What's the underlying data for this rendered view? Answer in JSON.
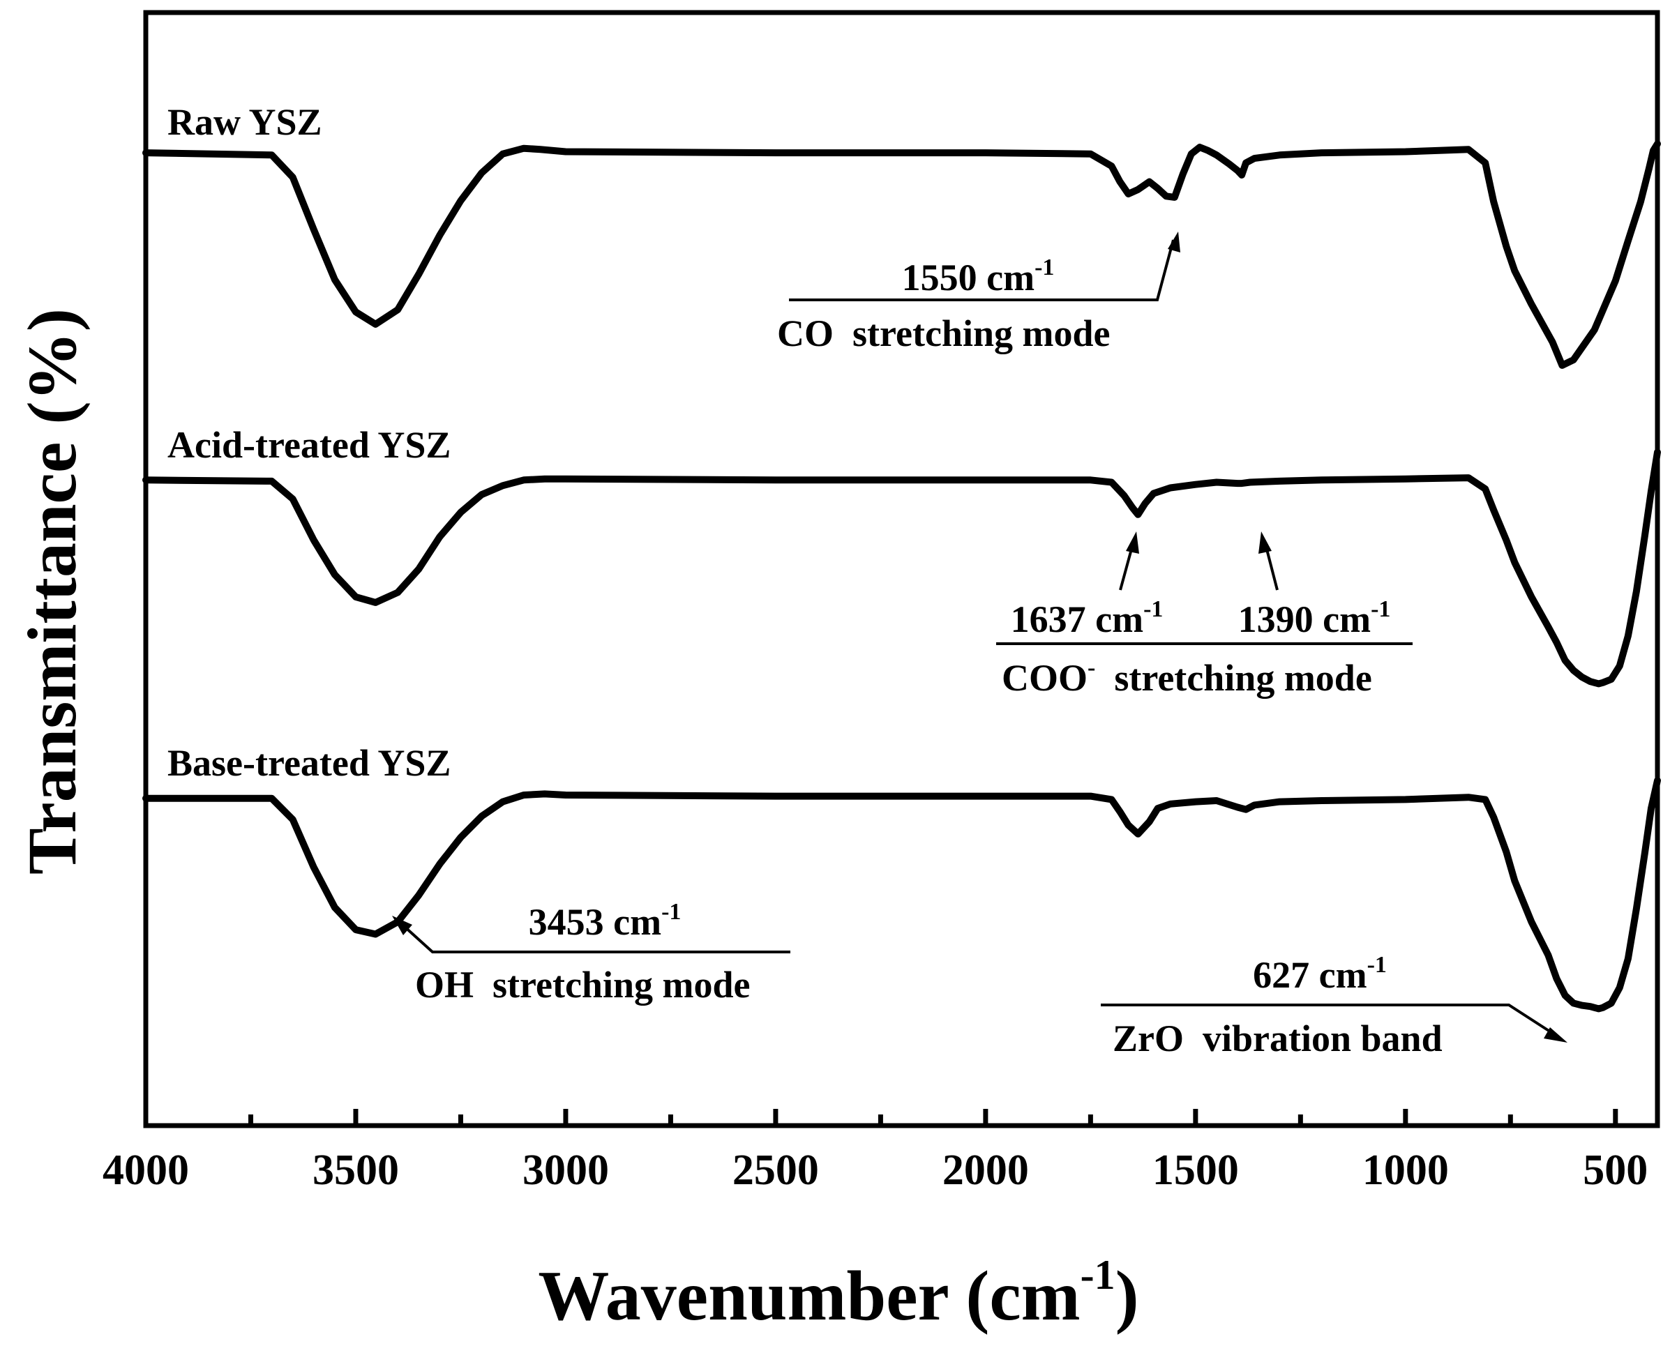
{
  "chart_data": {
    "type": "line",
    "title": "",
    "xlabel": "Wavenumber (cm",
    "xlabel_sup": "-1",
    "xlabel_close": ")",
    "ylabel": "Transmittance (%)",
    "xlim": [
      4000,
      400
    ],
    "x_reversed": true,
    "y_ticks_shown": false,
    "grid": false,
    "x_ticks": [
      4000,
      3500,
      3000,
      2500,
      2000,
      1500,
      1000,
      500
    ],
    "x_tick_labels": [
      "4000",
      "3500",
      "3000",
      "2500",
      "2000",
      "1500",
      "1000",
      "500"
    ],
    "x_minor_ticks": [
      3750,
      3250,
      2750,
      2250,
      1750,
      1250,
      750
    ],
    "ylim": [
      0,
      100
    ],
    "series": [
      {
        "name": "Raw YSZ",
        "label": "Raw YSZ",
        "x": [
          4000,
          3700,
          3650,
          3600,
          3550,
          3500,
          3453,
          3400,
          3350,
          3300,
          3250,
          3200,
          3150,
          3100,
          3060,
          3000,
          2500,
          2000,
          1750,
          1700,
          1680,
          1660,
          1637,
          1610,
          1590,
          1570,
          1550,
          1530,
          1510,
          1490,
          1470,
          1450,
          1420,
          1400,
          1390,
          1380,
          1360,
          1300,
          1200,
          1000,
          850,
          810,
          790,
          760,
          740,
          700,
          650,
          627,
          600,
          550,
          500,
          470,
          440,
          420,
          410,
          400
        ],
        "values": [
          87.4,
          87.2,
          85.2,
          80.5,
          76.0,
          73.1,
          72.0,
          73.3,
          76.5,
          80.0,
          83.1,
          85.6,
          87.3,
          87.8,
          87.7,
          87.5,
          87.4,
          87.4,
          87.3,
          86.2,
          84.8,
          83.7,
          84.1,
          84.8,
          84.2,
          83.5,
          83.4,
          85.5,
          87.3,
          87.9,
          87.6,
          87.2,
          86.4,
          85.8,
          85.4,
          86.5,
          86.9,
          87.2,
          87.4,
          87.5,
          87.7,
          86.5,
          83.0,
          79.0,
          76.8,
          73.8,
          70.4,
          68.3,
          68.8,
          71.5,
          75.9,
          79.5,
          83.0,
          86.0,
          87.6,
          88.2
        ]
      },
      {
        "name": "Acid-treated YSZ",
        "label": "Acid-treated YSZ",
        "x": [
          4000,
          3700,
          3650,
          3600,
          3550,
          3500,
          3453,
          3400,
          3350,
          3300,
          3250,
          3200,
          3150,
          3100,
          3050,
          3000,
          2500,
          2000,
          1750,
          1700,
          1670,
          1650,
          1637,
          1620,
          1600,
          1560,
          1500,
          1450,
          1400,
          1390,
          1370,
          1300,
          1200,
          1000,
          850,
          810,
          790,
          760,
          740,
          700,
          660,
          640,
          620,
          600,
          580,
          560,
          540,
          530,
          510,
          490,
          470,
          450,
          430,
          415,
          400
        ],
        "values": [
          58.0,
          57.9,
          56.3,
          52.6,
          49.5,
          47.5,
          47.0,
          47.9,
          50.0,
          52.9,
          55.1,
          56.7,
          57.5,
          58.0,
          58.1,
          58.1,
          58.0,
          58.0,
          58.0,
          57.8,
          56.6,
          55.5,
          54.9,
          55.9,
          56.8,
          57.3,
          57.6,
          57.8,
          57.7,
          57.7,
          57.8,
          57.9,
          58.0,
          58.1,
          58.2,
          57.2,
          55.3,
          52.6,
          50.6,
          47.5,
          44.8,
          43.4,
          41.8,
          40.9,
          40.3,
          39.9,
          39.7,
          39.8,
          40.1,
          41.3,
          44.0,
          48.0,
          53.0,
          57.0,
          60.5
        ]
      },
      {
        "name": "Base-treated YSZ",
        "label": "Base-treated YSZ",
        "x": [
          4000,
          3700,
          3650,
          3600,
          3550,
          3500,
          3453,
          3400,
          3350,
          3300,
          3250,
          3200,
          3150,
          3100,
          3050,
          3000,
          2500,
          2000,
          1750,
          1700,
          1680,
          1660,
          1637,
          1610,
          1590,
          1560,
          1500,
          1450,
          1400,
          1380,
          1360,
          1300,
          1200,
          1000,
          850,
          810,
          790,
          760,
          740,
          700,
          660,
          640,
          620,
          600,
          580,
          560,
          540,
          530,
          510,
          490,
          470,
          450,
          430,
          415,
          400
        ],
        "values": [
          29.4,
          29.4,
          27.5,
          23.2,
          19.6,
          17.6,
          17.2,
          18.3,
          20.7,
          23.5,
          25.9,
          27.8,
          29.1,
          29.7,
          29.8,
          29.7,
          29.6,
          29.6,
          29.6,
          29.3,
          28.2,
          27.0,
          26.2,
          27.3,
          28.5,
          28.9,
          29.1,
          29.2,
          28.6,
          28.4,
          28.8,
          29.1,
          29.2,
          29.3,
          29.5,
          29.3,
          27.7,
          24.6,
          22.0,
          18.3,
          15.3,
          13.2,
          11.7,
          11.0,
          10.8,
          10.7,
          10.5,
          10.6,
          11.0,
          12.4,
          15.0,
          19.5,
          24.5,
          28.5,
          31.0
        ]
      }
    ],
    "annotations": [
      {
        "name": "co-annotation",
        "wavenumber_label": "1550 cm",
        "sup": "-1",
        "mode_label": "CO  stretching mode",
        "points_to": 1550
      },
      {
        "name": "coo-annotation-1637",
        "wavenumber_label": "1637 cm",
        "sup": "-1",
        "points_to": 1637
      },
      {
        "name": "coo-annotation-1390",
        "wavenumber_label": "1390 cm",
        "sup": "-1",
        "points_to": 1390
      },
      {
        "name": "coo-mode",
        "mode_label": "COO",
        "mode_sup": "-",
        "mode_rest": "  stretching mode"
      },
      {
        "name": "oh-annotation",
        "wavenumber_label": "3453 cm",
        "sup": "-1",
        "mode_label": "OH  stretching mode",
        "points_to": 3453
      },
      {
        "name": "zro-annotation",
        "wavenumber_label": "627 cm",
        "sup": "-1",
        "mode_label": "ZrO  vibration band",
        "points_to": 627
      }
    ]
  }
}
